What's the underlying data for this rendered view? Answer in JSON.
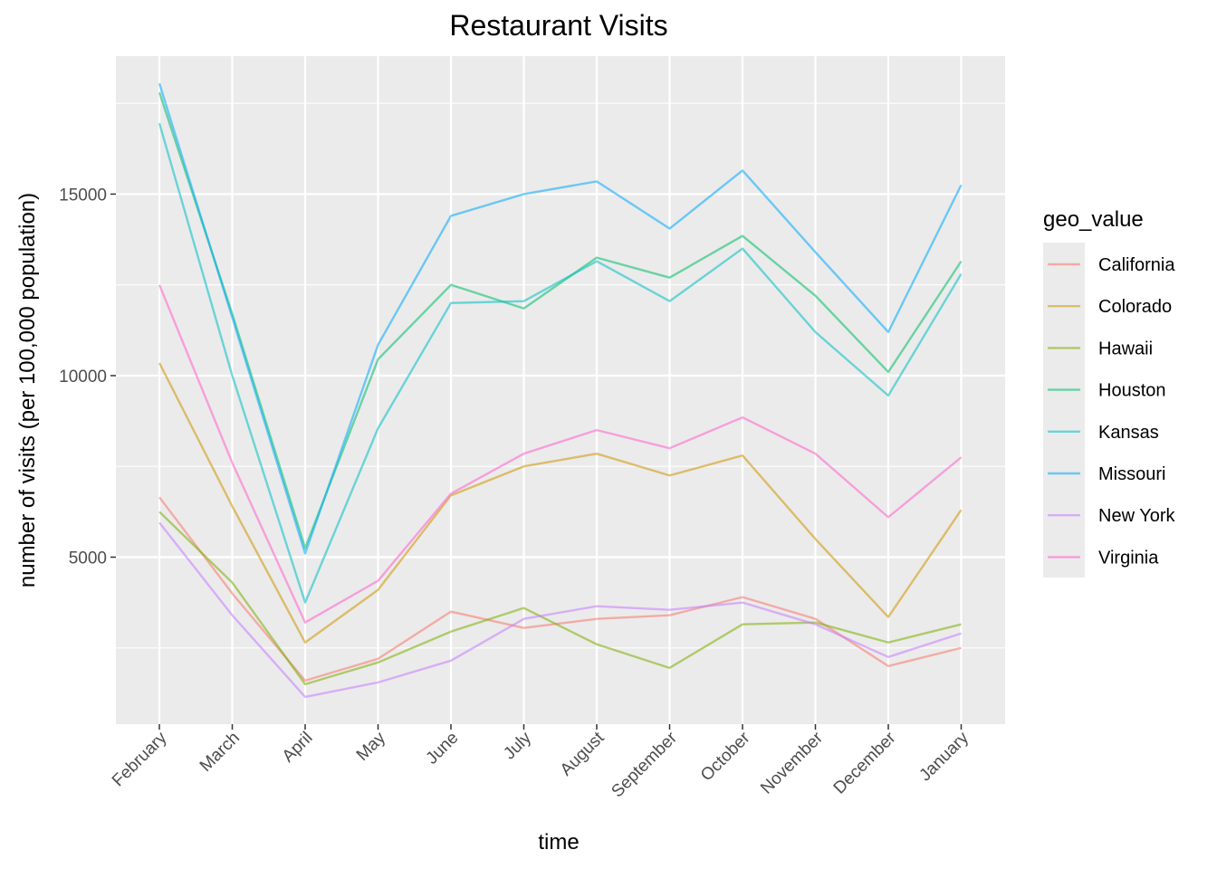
{
  "chart_data": {
    "type": "line",
    "title": "Restaurant Visits",
    "xlabel": "time",
    "ylabel": "number of visits (per 100,000 population)",
    "categories": [
      "February",
      "March",
      "April",
      "May",
      "June",
      "July",
      "August",
      "September",
      "October",
      "November",
      "December",
      "January"
    ],
    "ylim": [
      400,
      18800
    ],
    "yticks": [
      5000,
      10000,
      15000
    ],
    "grid": true,
    "legend": {
      "title": "geo_value",
      "placement": "right"
    },
    "series": [
      {
        "name": "California",
        "color": "#F8766D",
        "values": [
          6650,
          4000,
          1600,
          2200,
          3500,
          3050,
          3300,
          3400,
          3900,
          3300,
          2000,
          2500
        ]
      },
      {
        "name": "Colorado",
        "color": "#CD9600",
        "values": [
          10350,
          6400,
          2650,
          4100,
          6700,
          7500,
          7850,
          7250,
          7800,
          5500,
          3350,
          6300
        ]
      },
      {
        "name": "Hawaii",
        "color": "#7CAE00",
        "values": [
          6250,
          4300,
          1500,
          2100,
          2950,
          3600,
          2600,
          1950,
          3150,
          3200,
          2650,
          3150
        ]
      },
      {
        "name": "Houston",
        "color": "#00BE67",
        "values": [
          17800,
          11700,
          5250,
          10450,
          12500,
          11850,
          13250,
          12700,
          13850,
          12200,
          10100,
          13150
        ]
      },
      {
        "name": "Kansas",
        "color": "#00BFC4",
        "values": [
          16950,
          10000,
          3750,
          8550,
          12000,
          12050,
          13150,
          12050,
          13500,
          11200,
          9450,
          12800
        ]
      },
      {
        "name": "Missouri",
        "color": "#00A9FF",
        "values": [
          18050,
          11600,
          5100,
          10850,
          14400,
          15000,
          15350,
          14050,
          15650,
          13400,
          11200,
          15250
        ]
      },
      {
        "name": "New York",
        "color": "#C77CFF",
        "values": [
          5950,
          3400,
          1150,
          1550,
          2150,
          3300,
          3650,
          3550,
          3750,
          3150,
          2250,
          2900
        ]
      },
      {
        "name": "Virginia",
        "color": "#FF61CC",
        "values": [
          12500,
          7600,
          3200,
          4350,
          6750,
          7850,
          8500,
          8000,
          8850,
          7850,
          6100,
          7750
        ]
      }
    ]
  }
}
